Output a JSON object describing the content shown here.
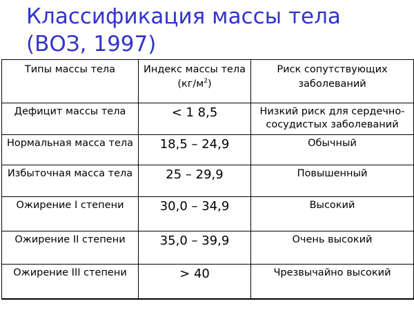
{
  "title": {
    "line1": "Классификация массы тела",
    "line2": "(ВОЗ, 1997)"
  },
  "table": {
    "headers": {
      "type": "Типы массы тела",
      "index_prefix": "Индекс массы тела (кг/м",
      "index_sup": "2",
      "index_suffix": ")",
      "risk": "Риск сопутствующих заболеваний"
    },
    "rows": [
      {
        "type": "Дефицит массы тела",
        "range": "< 1 8,5",
        "risk": "Низкий риск для сердечно-сосудистых заболеваний"
      },
      {
        "type": "Нормальная масса тела",
        "range": "18,5 – 24,9",
        "risk": "Обычный"
      },
      {
        "type": "Избыточная масса тела",
        "range": "25 – 29,9",
        "risk": "Повышенный"
      },
      {
        "type": "Ожирение I степени",
        "range": "30,0 – 34,9",
        "risk": "Высокий"
      },
      {
        "type": "Ожирение II степени",
        "range": "35,0 – 39,9",
        "risk": "Очень высокий"
      },
      {
        "type": "Ожирение III степени",
        "range": "> 40",
        "risk": "Чрезвычайно высокий"
      }
    ]
  },
  "colors": {
    "title": "#3333cc",
    "text": "#000000",
    "border": "#000000",
    "background": "#ffffff"
  }
}
